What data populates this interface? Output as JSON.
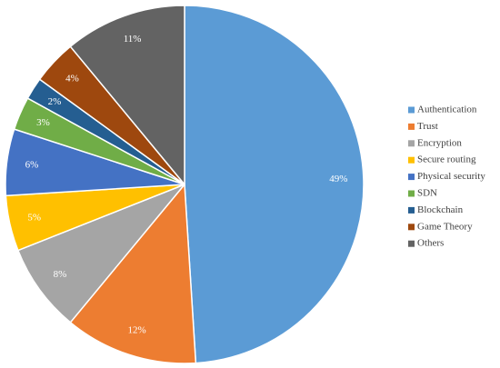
{
  "chart_data": {
    "type": "pie",
    "start_angle_deg": 0,
    "direction": "clockwise",
    "legend_position": "right",
    "slices": [
      {
        "label": "Authentication",
        "value": 49,
        "display": "49%",
        "color": "#5B9BD5"
      },
      {
        "label": "Trust",
        "value": 12,
        "display": "12%",
        "color": "#ED7D31"
      },
      {
        "label": "Encryption",
        "value": 8,
        "display": "8%",
        "color": "#A5A5A5"
      },
      {
        "label": "Secure routing",
        "value": 5,
        "display": "5%",
        "color": "#FFC000"
      },
      {
        "label": "Physical security",
        "value": 6,
        "display": "6%",
        "color": "#4472C4"
      },
      {
        "label": "SDN",
        "value": 3,
        "display": "3%",
        "color": "#70AD47"
      },
      {
        "label": "Blockchain",
        "value": 2,
        "display": "2%",
        "color": "#255E91"
      },
      {
        "label": "Game Theory",
        "value": 4,
        "display": "4%",
        "color": "#9E480E"
      },
      {
        "label": "Others",
        "value": 11,
        "display": "11%",
        "color": "#636363"
      }
    ]
  }
}
